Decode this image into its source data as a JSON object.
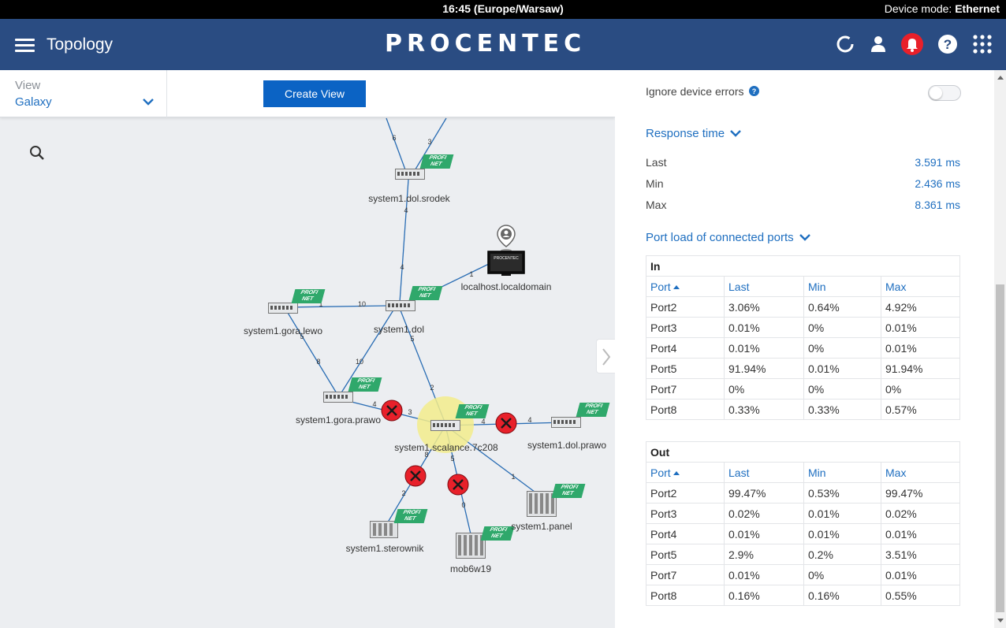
{
  "statusbar": {
    "time": "16:45 (Europe/Warsaw)",
    "mode_label": "Device mode: ",
    "mode_value": "Ethernet"
  },
  "header": {
    "title": "Topology",
    "logo": "PROCENTEC"
  },
  "toolbar": {
    "view_label": "View",
    "view_value": "Galaxy",
    "create_view": "Create View"
  },
  "topology": {
    "nodes": [
      {
        "label": "system1.dol.srodek"
      },
      {
        "label": "localhost.localdomain"
      },
      {
        "label": "system1.gora.lewo"
      },
      {
        "label": "system1.dol"
      },
      {
        "label": "system1.gora.prawo"
      },
      {
        "label": "system1.scalance.7c208"
      },
      {
        "label": "system1.dol.prawo"
      },
      {
        "label": "system1.sterownik"
      },
      {
        "label": "system1.panel"
      },
      {
        "label": "mob6w19"
      }
    ],
    "device_badge": "PROFI NET",
    "pc_screen": "PROCENTEC"
  },
  "panel": {
    "ignore_errors": "Ignore device errors",
    "response_time": "Response time",
    "rt_rows": [
      {
        "label": "Last",
        "value": "3.591 ms"
      },
      {
        "label": "Min",
        "value": "2.436 ms"
      },
      {
        "label": "Max",
        "value": "8.361 ms"
      }
    ],
    "port_load": "Port load of connected ports",
    "in_table": {
      "caption": "In",
      "headers": [
        "Port",
        "Last",
        "Min",
        "Max"
      ],
      "rows": [
        [
          "Port2",
          "3.06%",
          "0.64%",
          "4.92%"
        ],
        [
          "Port3",
          "0.01%",
          "0%",
          "0.01%"
        ],
        [
          "Port4",
          "0.01%",
          "0%",
          "0.01%"
        ],
        [
          "Port5",
          "91.94%",
          "0.01%",
          "91.94%"
        ],
        [
          "Port7",
          "0%",
          "0%",
          "0%"
        ],
        [
          "Port8",
          "0.33%",
          "0.33%",
          "0.57%"
        ]
      ]
    },
    "out_table": {
      "caption": "Out",
      "headers": [
        "Port",
        "Last",
        "Min",
        "Max"
      ],
      "rows": [
        [
          "Port2",
          "99.47%",
          "0.53%",
          "99.47%"
        ],
        [
          "Port3",
          "0.02%",
          "0.01%",
          "0.02%"
        ],
        [
          "Port4",
          "0.01%",
          "0.01%",
          "0.01%"
        ],
        [
          "Port5",
          "2.9%",
          "0.2%",
          "3.51%"
        ],
        [
          "Port7",
          "0.01%",
          "0%",
          "0.01%"
        ],
        [
          "Port8",
          "0.16%",
          "0.16%",
          "0.55%"
        ]
      ]
    }
  },
  "colors": {
    "header": "#2a4c82",
    "accent": "#1f6fc0",
    "button": "#0b63c4",
    "error": "#e8202a",
    "link": "#1b6db8"
  }
}
